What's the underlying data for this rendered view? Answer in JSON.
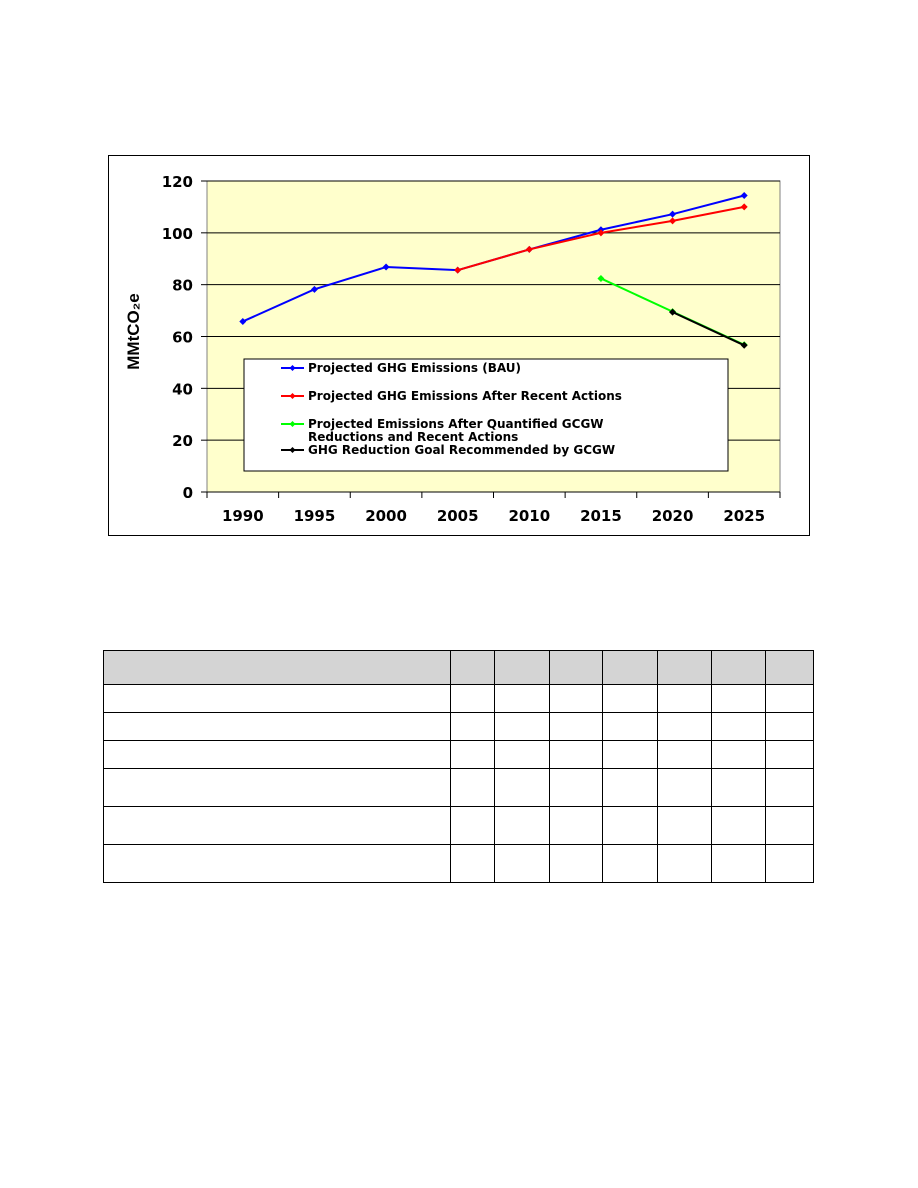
{
  "chart_data": {
    "type": "line",
    "x": [
      1990,
      1995,
      2000,
      2005,
      2010,
      2015,
      2020,
      2025
    ],
    "xlim": [
      1987.5,
      2027.5
    ],
    "ylim": [
      0,
      120
    ],
    "yticks": [
      0,
      20,
      40,
      60,
      80,
      100,
      120
    ],
    "xticks": [
      1990,
      1995,
      2000,
      2005,
      2010,
      2015,
      2020,
      2025
    ],
    "ylabel": "MMtCO₂e",
    "xlabel": "",
    "title": "",
    "grid": "horizontal",
    "plot_background": "#ffffcc",
    "legend_placement": "center",
    "series": [
      {
        "name": "Projected GHG Emissions (BAU)",
        "color": "#0000ff",
        "points": [
          [
            1990,
            65.8
          ],
          [
            1995,
            78.2
          ],
          [
            2000,
            86.8
          ],
          [
            2005,
            85.6
          ],
          [
            2010,
            93.6
          ],
          [
            2015,
            101.2
          ],
          [
            2020,
            107.2
          ],
          [
            2025,
            114.4
          ]
        ]
      },
      {
        "name": "Projected GHG Emissions After Recent Actions",
        "color": "#ff0000",
        "points": [
          [
            2005,
            85.6
          ],
          [
            2010,
            93.6
          ],
          [
            2015,
            100.0
          ],
          [
            2020,
            104.6
          ],
          [
            2025,
            110.0
          ]
        ]
      },
      {
        "name": "Projected Emissions After Quantified GCGW Reductions and Recent Actions",
        "color": "#00ff00",
        "points": [
          [
            2015,
            82.4
          ],
          [
            2020,
            69.6
          ],
          [
            2025,
            56.8
          ]
        ]
      },
      {
        "name": "GHG Reduction Goal Recommended by GCGW",
        "color": "#000000",
        "points": [
          [
            2020,
            69.4
          ],
          [
            2025,
            56.6
          ]
        ]
      }
    ]
  },
  "table": {
    "columns": 8,
    "rows": 6
  }
}
